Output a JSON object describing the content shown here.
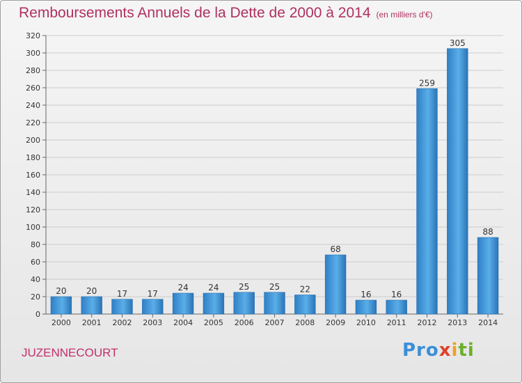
{
  "header": {
    "title": "Remboursements Annuels de la Dette de 2000 à 2014",
    "subtitle": "(en milliers d'€)"
  },
  "footer": {
    "town": "JUZENNECOURT",
    "logo": [
      "Pro",
      "x",
      "i",
      "ti"
    ]
  },
  "colors": {
    "bar": "#3a8fd8",
    "title": "#b03060",
    "grid": "#cccccc"
  },
  "chart_data": {
    "type": "bar",
    "title": "Remboursements Annuels de la Dette de 2000 à 2014",
    "xlabel": "",
    "ylabel": "",
    "ylim": [
      0,
      320
    ],
    "yticks": [
      0,
      20,
      40,
      60,
      80,
      100,
      120,
      140,
      160,
      180,
      200,
      220,
      240,
      260,
      280,
      300,
      320
    ],
    "grid": true,
    "categories": [
      "2000",
      "2001",
      "2002",
      "2003",
      "2004",
      "2005",
      "2006",
      "2007",
      "2008",
      "2009",
      "2010",
      "2011",
      "2012",
      "2013",
      "2014"
    ],
    "values": [
      20,
      20,
      17,
      17,
      24,
      24,
      25,
      25,
      22,
      68,
      16,
      16,
      259,
      305,
      88
    ],
    "labels": [
      "20",
      "20",
      "17",
      "17",
      "24",
      "24",
      "25",
      "25",
      "22",
      "68",
      "16",
      "16",
      "259",
      "305",
      "88"
    ]
  }
}
